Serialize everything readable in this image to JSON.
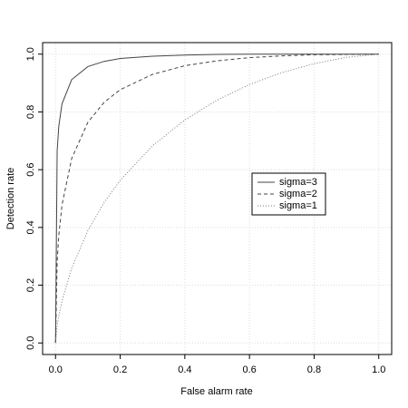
{
  "chart_data": {
    "type": "line",
    "xlabel": "False alarm rate",
    "ylabel": "Detection rate",
    "x": [
      0,
      0.005,
      0.01,
      0.02,
      0.05,
      0.1,
      0.15,
      0.2,
      0.3,
      0.4,
      0.5,
      0.6,
      0.7,
      0.8,
      0.9,
      1.0
    ],
    "series": [
      {
        "name": "sigma=3",
        "color": "#444444",
        "dash": "none",
        "values": [
          0,
          0.664,
          0.75,
          0.828,
          0.912,
          0.957,
          0.975,
          0.985,
          0.993,
          0.997,
          0.999,
          1.0,
          1.0,
          1.0,
          1.0,
          1.0
        ]
      },
      {
        "name": "sigma=2",
        "color": "#444444",
        "dash": "4,3",
        "values": [
          0,
          0.282,
          0.372,
          0.478,
          0.639,
          0.764,
          0.833,
          0.877,
          0.93,
          0.96,
          0.977,
          0.988,
          0.994,
          0.998,
          0.999,
          1.0
        ]
      },
      {
        "name": "sigma=1",
        "color": "#777777",
        "dash": "1,2",
        "values": [
          0,
          0.058,
          0.092,
          0.146,
          0.259,
          0.389,
          0.486,
          0.563,
          0.683,
          0.772,
          0.841,
          0.895,
          0.936,
          0.967,
          0.989,
          1.0
        ]
      }
    ],
    "xlim": [
      -0.04,
      1.04
    ],
    "ylim": [
      -0.04,
      1.04
    ],
    "xticks": [
      {
        "value": 0,
        "label": "0.0"
      },
      0.2,
      0.4,
      0.6,
      0.8,
      {
        "value": 1,
        "label": "1.0"
      }
    ],
    "yticks": [
      {
        "value": 0,
        "label": "0.0"
      },
      0.2,
      0.4,
      0.6,
      0.8,
      {
        "value": 1,
        "label": "1.0"
      }
    ],
    "grid": true,
    "legend_position": "right"
  }
}
